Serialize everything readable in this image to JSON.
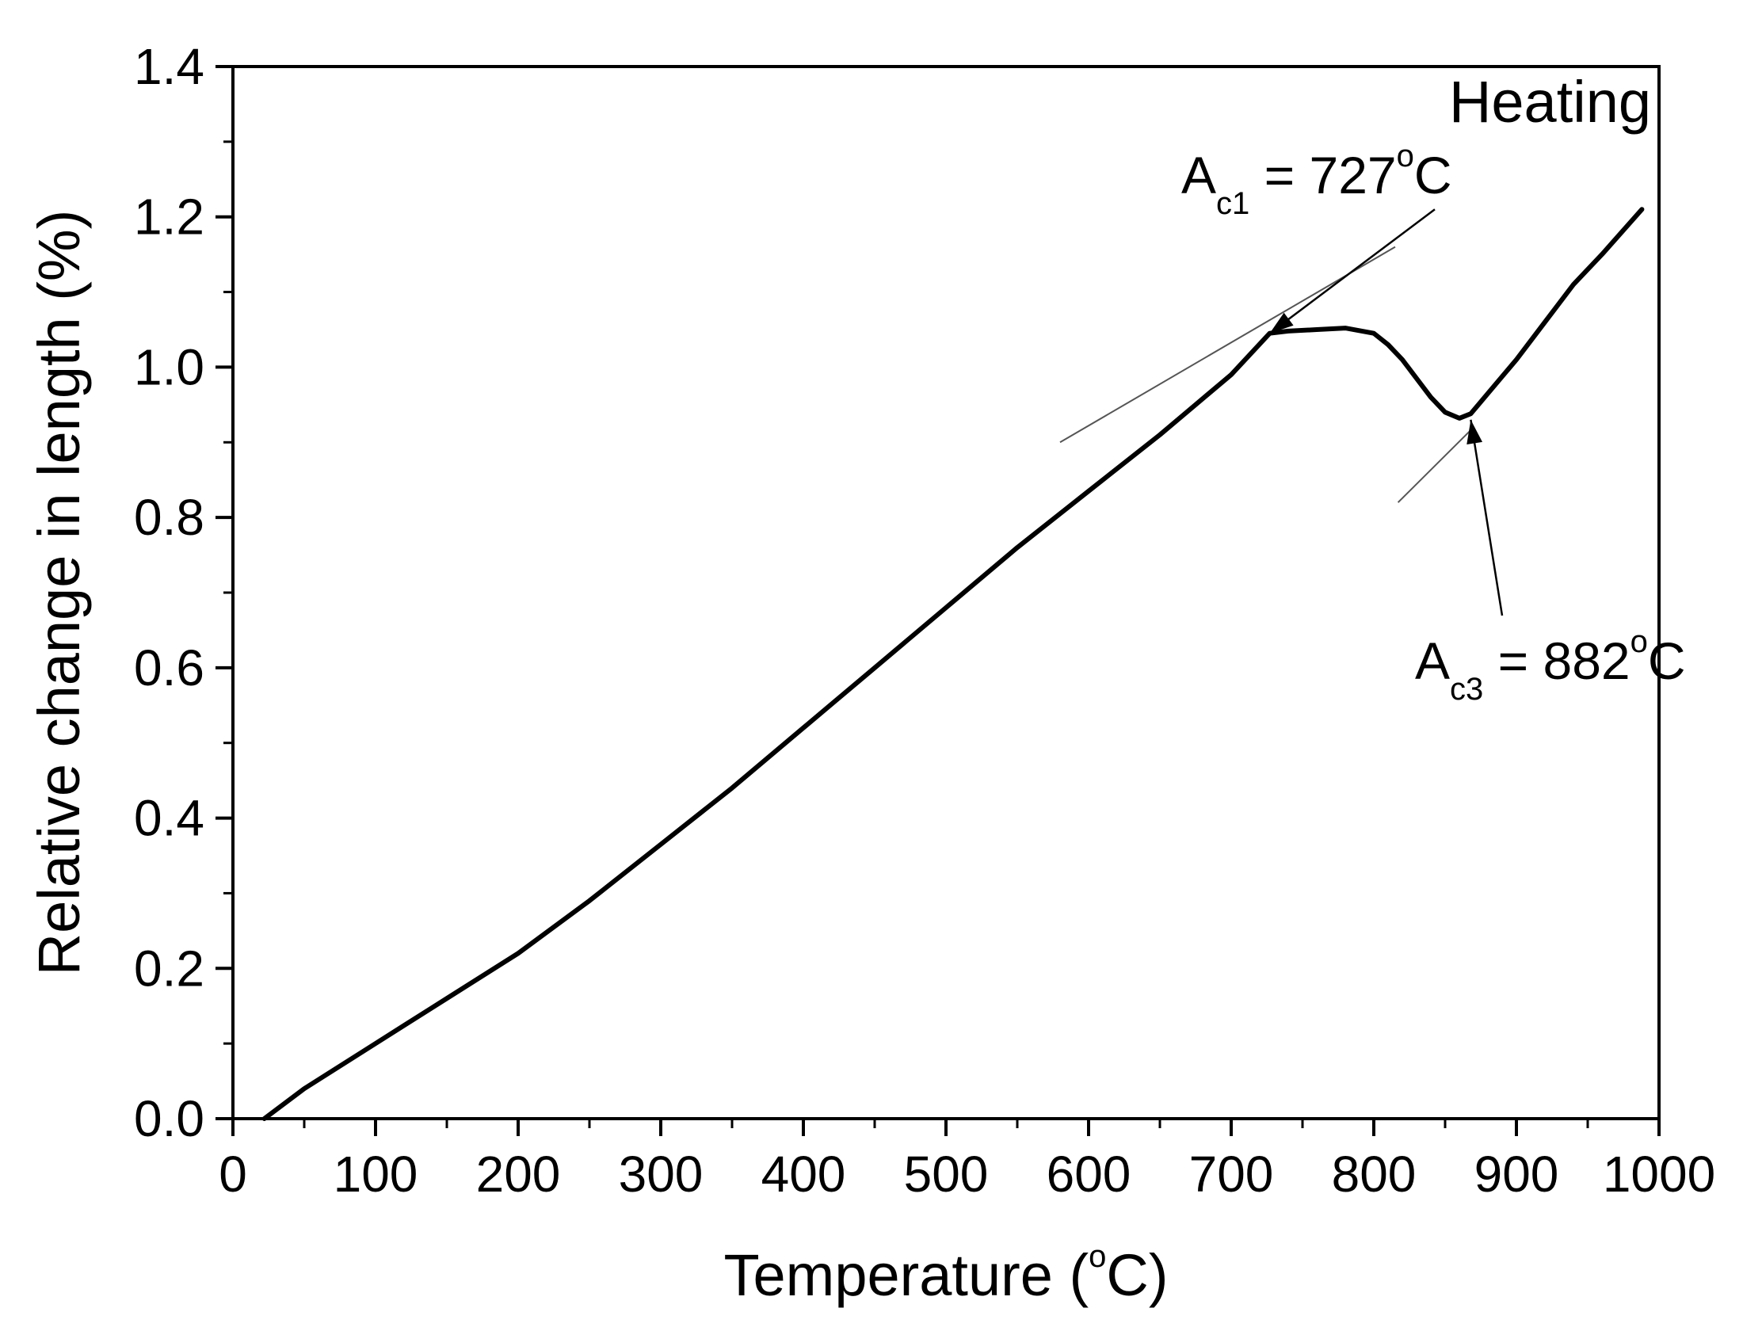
{
  "chart_data": {
    "type": "line",
    "xlabel": "Temperature (",
    "xlabel_sup": "o",
    "xlabel_unit": "C)",
    "ylabel": "Relative change in length (%)",
    "xlim": [
      0,
      1000
    ],
    "ylim": [
      0,
      1.4
    ],
    "x_ticks": [
      0,
      100,
      200,
      300,
      400,
      500,
      600,
      700,
      800,
      900,
      1000
    ],
    "x_tick_labels": [
      "0",
      "100",
      "200",
      "300",
      "400",
      "500",
      "600",
      "700",
      "800",
      "900",
      "1000"
    ],
    "y_ticks": [
      0,
      0.2,
      0.4,
      0.6,
      0.8,
      1.0,
      1.2,
      1.4
    ],
    "y_tick_labels": [
      "0.0",
      "0.2",
      "0.4",
      "0.6",
      "0.8",
      "1.0",
      "1.2",
      "1.4"
    ],
    "x_minor_step": 50,
    "y_minor_step": 0.1,
    "grid": false,
    "legend_text": "Heating",
    "legend_position": "top-right",
    "series": [
      {
        "name": "Heating",
        "color": "#000000",
        "x": [
          22,
          50,
          100,
          150,
          200,
          250,
          300,
          350,
          400,
          450,
          500,
          550,
          600,
          650,
          700,
          727,
          740,
          760,
          780,
          800,
          810,
          820,
          830,
          840,
          850,
          860,
          868,
          880,
          900,
          920,
          940,
          960,
          988
        ],
        "y": [
          0.0,
          0.04,
          0.1,
          0.16,
          0.22,
          0.29,
          0.365,
          0.44,
          0.52,
          0.6,
          0.68,
          0.76,
          0.835,
          0.91,
          0.99,
          1.045,
          1.048,
          1.05,
          1.052,
          1.045,
          1.03,
          1.01,
          0.985,
          0.96,
          0.94,
          0.932,
          0.938,
          0.965,
          1.01,
          1.06,
          1.11,
          1.15,
          1.21
        ]
      }
    ],
    "annotations": [
      {
        "name": "Ac1",
        "main": "A",
        "sub": "c1",
        "value": " = 727",
        "sup": "o",
        "unit": "C",
        "temperature": 727,
        "point": [
          727,
          1.045
        ],
        "label_anchor": [
          665,
          1.21
        ],
        "tangent": [
          [
            580,
            0.9
          ],
          [
            815,
            1.16
          ]
        ]
      },
      {
        "name": "Ac3",
        "main": "A",
        "sub": "c3",
        "value": " = 882",
        "sup": "o",
        "unit": "C",
        "temperature": 882,
        "point": [
          868,
          0.93
        ],
        "label_anchor": [
          940,
          0.68
        ],
        "tangent": [
          [
            817,
            0.82
          ],
          [
            870,
            0.92
          ]
        ]
      }
    ]
  }
}
